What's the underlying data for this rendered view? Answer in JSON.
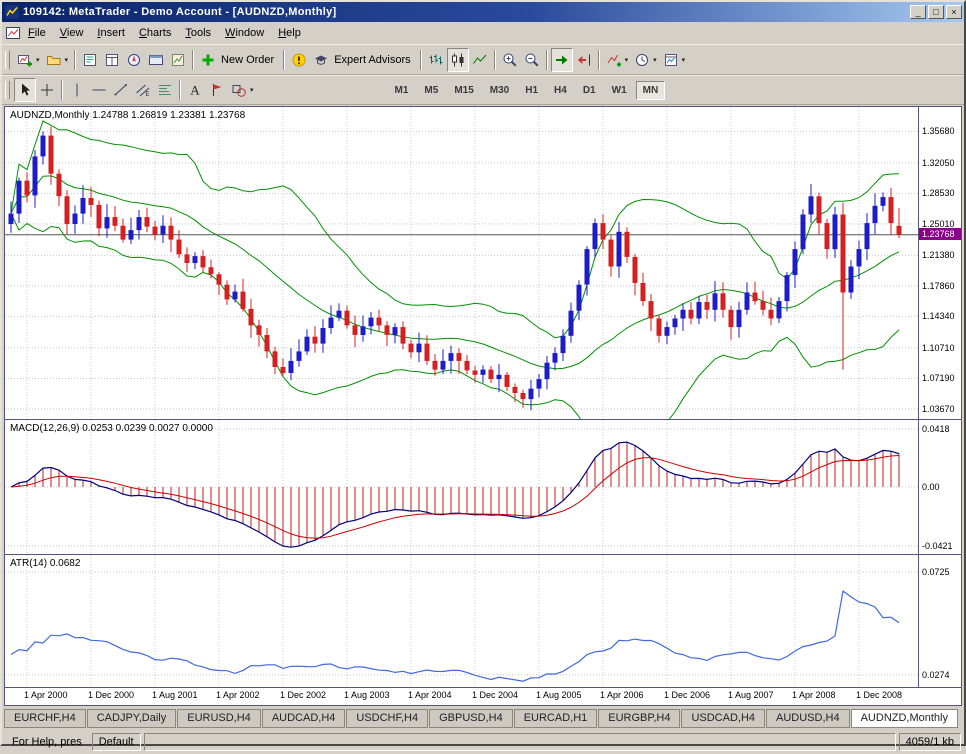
{
  "window": {
    "title": "109142: MetaTrader - Demo Account - [AUDNZD,Monthly]",
    "controls": {
      "minimize": "_",
      "restore": "□",
      "close": "×"
    }
  },
  "menu": {
    "items": [
      "File",
      "View",
      "Insert",
      "Charts",
      "Tools",
      "Window",
      "Help"
    ]
  },
  "toolbar": {
    "row1": [
      {
        "name": "new-chart",
        "dropdown": true
      },
      {
        "name": "profiles",
        "dropdown": true
      },
      {
        "sep": true
      },
      {
        "name": "market-watch"
      },
      {
        "name": "data-window"
      },
      {
        "name": "navigator"
      },
      {
        "name": "terminal"
      },
      {
        "name": "strategy-tester"
      },
      {
        "sep": true
      },
      {
        "name": "new-order",
        "label": "New Order"
      },
      {
        "sep": true
      },
      {
        "name": "scripts-alert"
      },
      {
        "name": "expert-advisors",
        "label": "Expert Advisors"
      },
      {
        "sep": true
      },
      {
        "name": "chart-bars"
      },
      {
        "name": "chart-candles",
        "pressed": true
      },
      {
        "name": "chart-line"
      },
      {
        "sep": true
      },
      {
        "name": "zoom-in"
      },
      {
        "name": "zoom-out"
      },
      {
        "sep": true
      },
      {
        "name": "auto-scroll",
        "pressed": true
      },
      {
        "name": "chart-shift"
      },
      {
        "sep": true
      },
      {
        "name": "indicators",
        "dropdown": true
      },
      {
        "name": "periods",
        "dropdown": true
      },
      {
        "name": "templates",
        "dropdown": true
      }
    ],
    "row2_tools": [
      {
        "name": "cursor",
        "pressed": true
      },
      {
        "name": "crosshair"
      },
      {
        "sep": true
      },
      {
        "name": "vertical-line"
      },
      {
        "name": "horizontal-line"
      },
      {
        "name": "trendline"
      },
      {
        "name": "equidistant-channel"
      },
      {
        "name": "fibonacci"
      },
      {
        "sep": true
      },
      {
        "name": "text-label"
      },
      {
        "name": "arrow-label"
      },
      {
        "name": "shapes",
        "dropdown": true
      }
    ],
    "timeframes": [
      {
        "label": "M1"
      },
      {
        "label": "M5"
      },
      {
        "label": "M15"
      },
      {
        "label": "M30"
      },
      {
        "label": "H1"
      },
      {
        "label": "H4"
      },
      {
        "label": "D1"
      },
      {
        "label": "W1"
      },
      {
        "label": "MN",
        "active": true
      }
    ]
  },
  "chart_data": {
    "type": "candlestick",
    "symbol": "AUDNZD",
    "timeframe": "Monthly",
    "quote_line": "AUDNZD,Monthly  1.24788 1.26819 1.23381 1.23768",
    "last_candle": {
      "open": 1.24788,
      "high": 1.26819,
      "low": 1.23381,
      "close": 1.23768
    },
    "current_price": "1.23768",
    "y_axis_labels": [
      "1.35680",
      "1.32050",
      "1.28530",
      "1.25010",
      "1.21380",
      "1.17860",
      "1.14340",
      "1.10710",
      "1.07190",
      "1.03670"
    ],
    "y_range": [
      1.025,
      1.385
    ],
    "x_labels": [
      {
        "label": "1 Apr 2000",
        "i": 2
      },
      {
        "label": "1 Dec 2000",
        "i": 10
      },
      {
        "label": "1 Aug 2001",
        "i": 18
      },
      {
        "label": "1 Apr 2002",
        "i": 26
      },
      {
        "label": "1 Dec 2002",
        "i": 34
      },
      {
        "label": "1 Aug 2003",
        "i": 42
      },
      {
        "label": "1 Apr 2004",
        "i": 50
      },
      {
        "label": "1 Dec 2004",
        "i": 58
      },
      {
        "label": "1 Aug 2005",
        "i": 66
      },
      {
        "label": "1 Apr 2006",
        "i": 74
      },
      {
        "label": "1 Dec 2006",
        "i": 82
      },
      {
        "label": "1 Aug 2007",
        "i": 90
      },
      {
        "label": "1 Apr 2008",
        "i": 98
      },
      {
        "label": "1 Dec 2008",
        "i": 106
      }
    ],
    "closes": [
      1.262,
      1.3,
      1.283,
      1.328,
      1.352,
      1.308,
      1.282,
      1.25,
      1.262,
      1.28,
      1.272,
      1.245,
      1.258,
      1.248,
      1.232,
      1.243,
      1.258,
      1.247,
      1.238,
      1.248,
      1.232,
      1.215,
      1.205,
      1.213,
      1.2,
      1.192,
      1.18,
      1.163,
      1.172,
      1.152,
      1.133,
      1.122,
      1.103,
      1.085,
      1.078,
      1.092,
      1.103,
      1.12,
      1.112,
      1.13,
      1.142,
      1.15,
      1.133,
      1.122,
      1.132,
      1.142,
      1.133,
      1.122,
      1.131,
      1.112,
      1.102,
      1.112,
      1.092,
      1.082,
      1.092,
      1.101,
      1.092,
      1.081,
      1.076,
      1.082,
      1.071,
      1.076,
      1.062,
      1.055,
      1.048,
      1.06,
      1.071,
      1.09,
      1.101,
      1.121,
      1.15,
      1.18,
      1.221,
      1.251,
      1.232,
      1.201,
      1.241,
      1.212,
      1.182,
      1.161,
      1.141,
      1.121,
      1.131,
      1.141,
      1.151,
      1.141,
      1.16,
      1.151,
      1.17,
      1.151,
      1.131,
      1.151,
      1.171,
      1.161,
      1.151,
      1.141,
      1.161,
      1.191,
      1.221,
      1.261,
      1.282,
      1.251,
      1.221,
      1.261,
      1.171,
      1.201,
      1.221,
      1.251,
      1.271,
      1.281,
      1.251,
      1.238
    ],
    "wick_overrides": {
      "4": {
        "high": 1.3568
      },
      "64": {
        "low": 1.038
      },
      "104": {
        "low": 1.082
      }
    },
    "overlays": {
      "bollinger": {
        "period": 20,
        "deviation": 2
      }
    },
    "indicators": [
      {
        "name": "MACD",
        "label": "MACD(12,26,9) 0.0253 0.0239 0.0027 0.0000",
        "params": [
          12,
          26,
          9
        ],
        "axis_labels": [
          "0.0418",
          "0.00",
          "-0.0421"
        ],
        "axis_values": [
          0.0418,
          0,
          -0.0421
        ],
        "range": [
          -0.048,
          0.048
        ]
      },
      {
        "name": "ATR",
        "label": "ATR(14) 0.0682",
        "period": 14,
        "axis_labels": [
          "0.0725",
          "0.0274"
        ],
        "axis_values": [
          0.0725,
          0.0274
        ],
        "range": [
          0.022,
          0.08
        ]
      }
    ],
    "colors": {
      "bull": "#1c1cc8",
      "bear": "#d42020",
      "bollinger": "#009000",
      "grid": "#c8c8c8",
      "bid_line": "#555555",
      "macd_main": "#000080",
      "macd_signal": "#cc0000",
      "macd_hist": "#b22222",
      "atr_line": "#4169e1",
      "price_badge": "#8b008b"
    }
  },
  "tabs": [
    {
      "label": "EURCHF,H4"
    },
    {
      "label": "CADJPY,Daily"
    },
    {
      "label": "EURUSD,H4"
    },
    {
      "label": "AUDCAD,H4"
    },
    {
      "label": "USDCHF,H4"
    },
    {
      "label": "GBPUSD,H4"
    },
    {
      "label": "EURCAD,H1"
    },
    {
      "label": "EURGBP,H4"
    },
    {
      "label": "USDCAD,H4"
    },
    {
      "label": "AUDUSD,H4"
    },
    {
      "label": "AUDNZD,Monthly",
      "active": true
    }
  ],
  "statusbar": {
    "help_text": "For Help, pres",
    "profile": "Default",
    "usage": "4059/1 kb"
  }
}
